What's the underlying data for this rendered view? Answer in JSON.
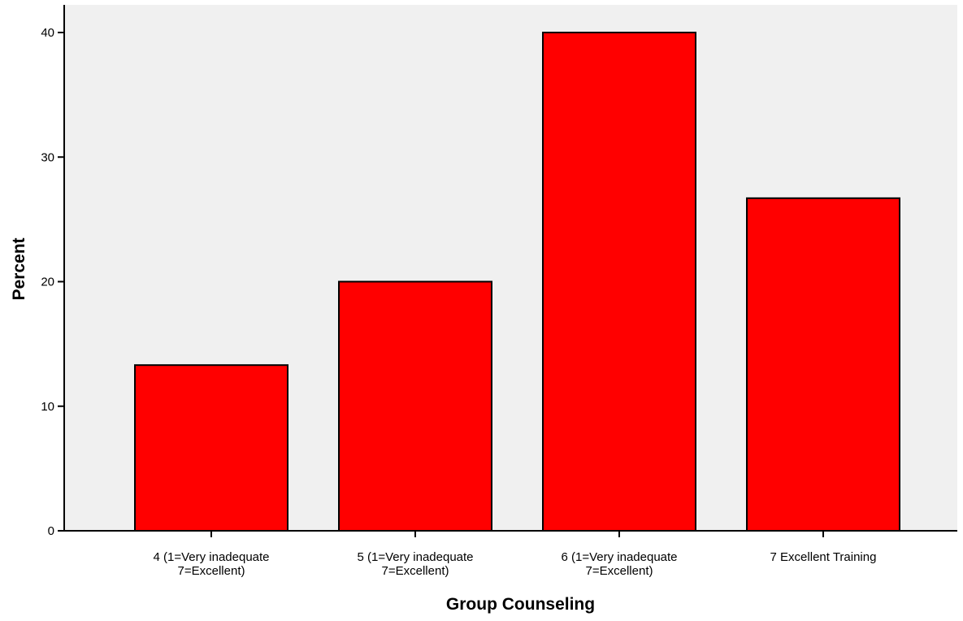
{
  "chart_data": {
    "type": "bar",
    "title": "",
    "xlabel": "Group Counseling",
    "ylabel": "Percent",
    "categories": [
      [
        "4 (1=Very inadequate",
        "7=Excellent)"
      ],
      [
        "5 (1=Very inadequate",
        "7=Excellent)"
      ],
      [
        "6 (1=Very inadequate",
        "7=Excellent)"
      ],
      [
        "7 Excellent Training"
      ]
    ],
    "values": [
      13.3,
      20.0,
      40.0,
      26.7
    ],
    "ylim": [
      0,
      40
    ],
    "yticks": [
      0,
      10,
      20,
      30,
      40
    ],
    "grid": false,
    "bar_color": "#ff0000",
    "plot_background": "#f0f0f0"
  }
}
